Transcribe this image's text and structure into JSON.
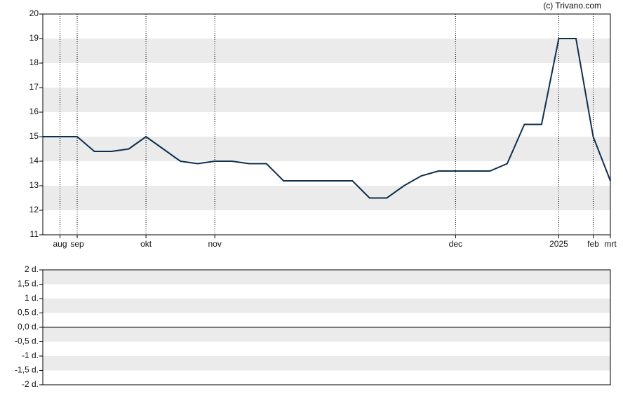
{
  "chart_data": [
    {
      "type": "line",
      "credit": "(c) Trivano.com",
      "categories": [
        null,
        "aug",
        "sep",
        null,
        null,
        null,
        "okt",
        null,
        null,
        null,
        "nov",
        null,
        null,
        null,
        null,
        null,
        null,
        null,
        null,
        null,
        null,
        null,
        null,
        null,
        "dec",
        null,
        null,
        null,
        null,
        null,
        "2025",
        null,
        "feb",
        "mrt"
      ],
      "series": [
        {
          "color": "#0e2f4f",
          "values": [
            15,
            15,
            15,
            14.4,
            14.4,
            14.5,
            15,
            14.5,
            14,
            13.9,
            14,
            14,
            13.9,
            13.9,
            13.2,
            13.2,
            13.2,
            13.2,
            13.2,
            12.5,
            12.5,
            13,
            13.4,
            13.6,
            13.6,
            13.6,
            13.6,
            13.9,
            15.5,
            15.5,
            19,
            19,
            15,
            13.2
          ]
        }
      ],
      "ylim": [
        11,
        20
      ],
      "yticks": [
        11,
        12,
        13,
        14,
        15,
        16,
        17,
        18,
        19,
        20
      ],
      "grid": "bands"
    },
    {
      "type": "bar",
      "ylim": [
        -2,
        2
      ],
      "yticks": [
        {
          "value": -2,
          "label": "-2 d."
        },
        {
          "value": -1.5,
          "label": "-1,5 d."
        },
        {
          "value": -1,
          "label": "-1 d."
        },
        {
          "value": -0.5,
          "label": "-0,5 d."
        },
        {
          "value": 0,
          "label": "0,0 d."
        },
        {
          "value": 0.5,
          "label": "0,5 d."
        },
        {
          "value": 1,
          "label": "1 d."
        },
        {
          "value": 1.5,
          "label": "1,5 d."
        },
        {
          "value": 2,
          "label": "2 d."
        }
      ],
      "grid": "bands"
    }
  ]
}
